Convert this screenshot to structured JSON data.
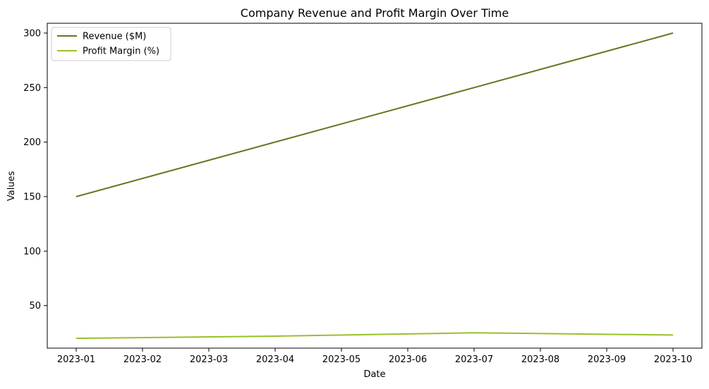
{
  "chart_data": {
    "type": "line",
    "title": "Company Revenue and Profit Margin Over Time",
    "xlabel": "Date",
    "ylabel": "Values",
    "x": [
      "2023-01",
      "2023-02",
      "2023-03",
      "2023-04",
      "2023-05",
      "2023-06",
      "2023-07",
      "2023-08",
      "2023-09",
      "2023-10"
    ],
    "x_tick_labels": [
      "2023-01",
      "2023-02",
      "2023-03",
      "2023-04",
      "2023-05",
      "2023-06",
      "2023-07",
      "2023-08",
      "2023-09",
      "2023-10"
    ],
    "y_ticks": [
      50,
      100,
      150,
      200,
      250,
      300
    ],
    "ylim": [
      11,
      309
    ],
    "grid": false,
    "legend_position": "top-left",
    "series": [
      {
        "name": "Revenue ($M)",
        "color": "#6b7320",
        "x": [
          "2023-01",
          "2023-04",
          "2023-07",
          "2023-10"
        ],
        "values": [
          150,
          200,
          250,
          300
        ]
      },
      {
        "name": "Profit Margin (%)",
        "color": "#9abf2a",
        "x": [
          "2023-01",
          "2023-04",
          "2023-07",
          "2023-10"
        ],
        "values": [
          20,
          22,
          25,
          23
        ]
      }
    ]
  }
}
